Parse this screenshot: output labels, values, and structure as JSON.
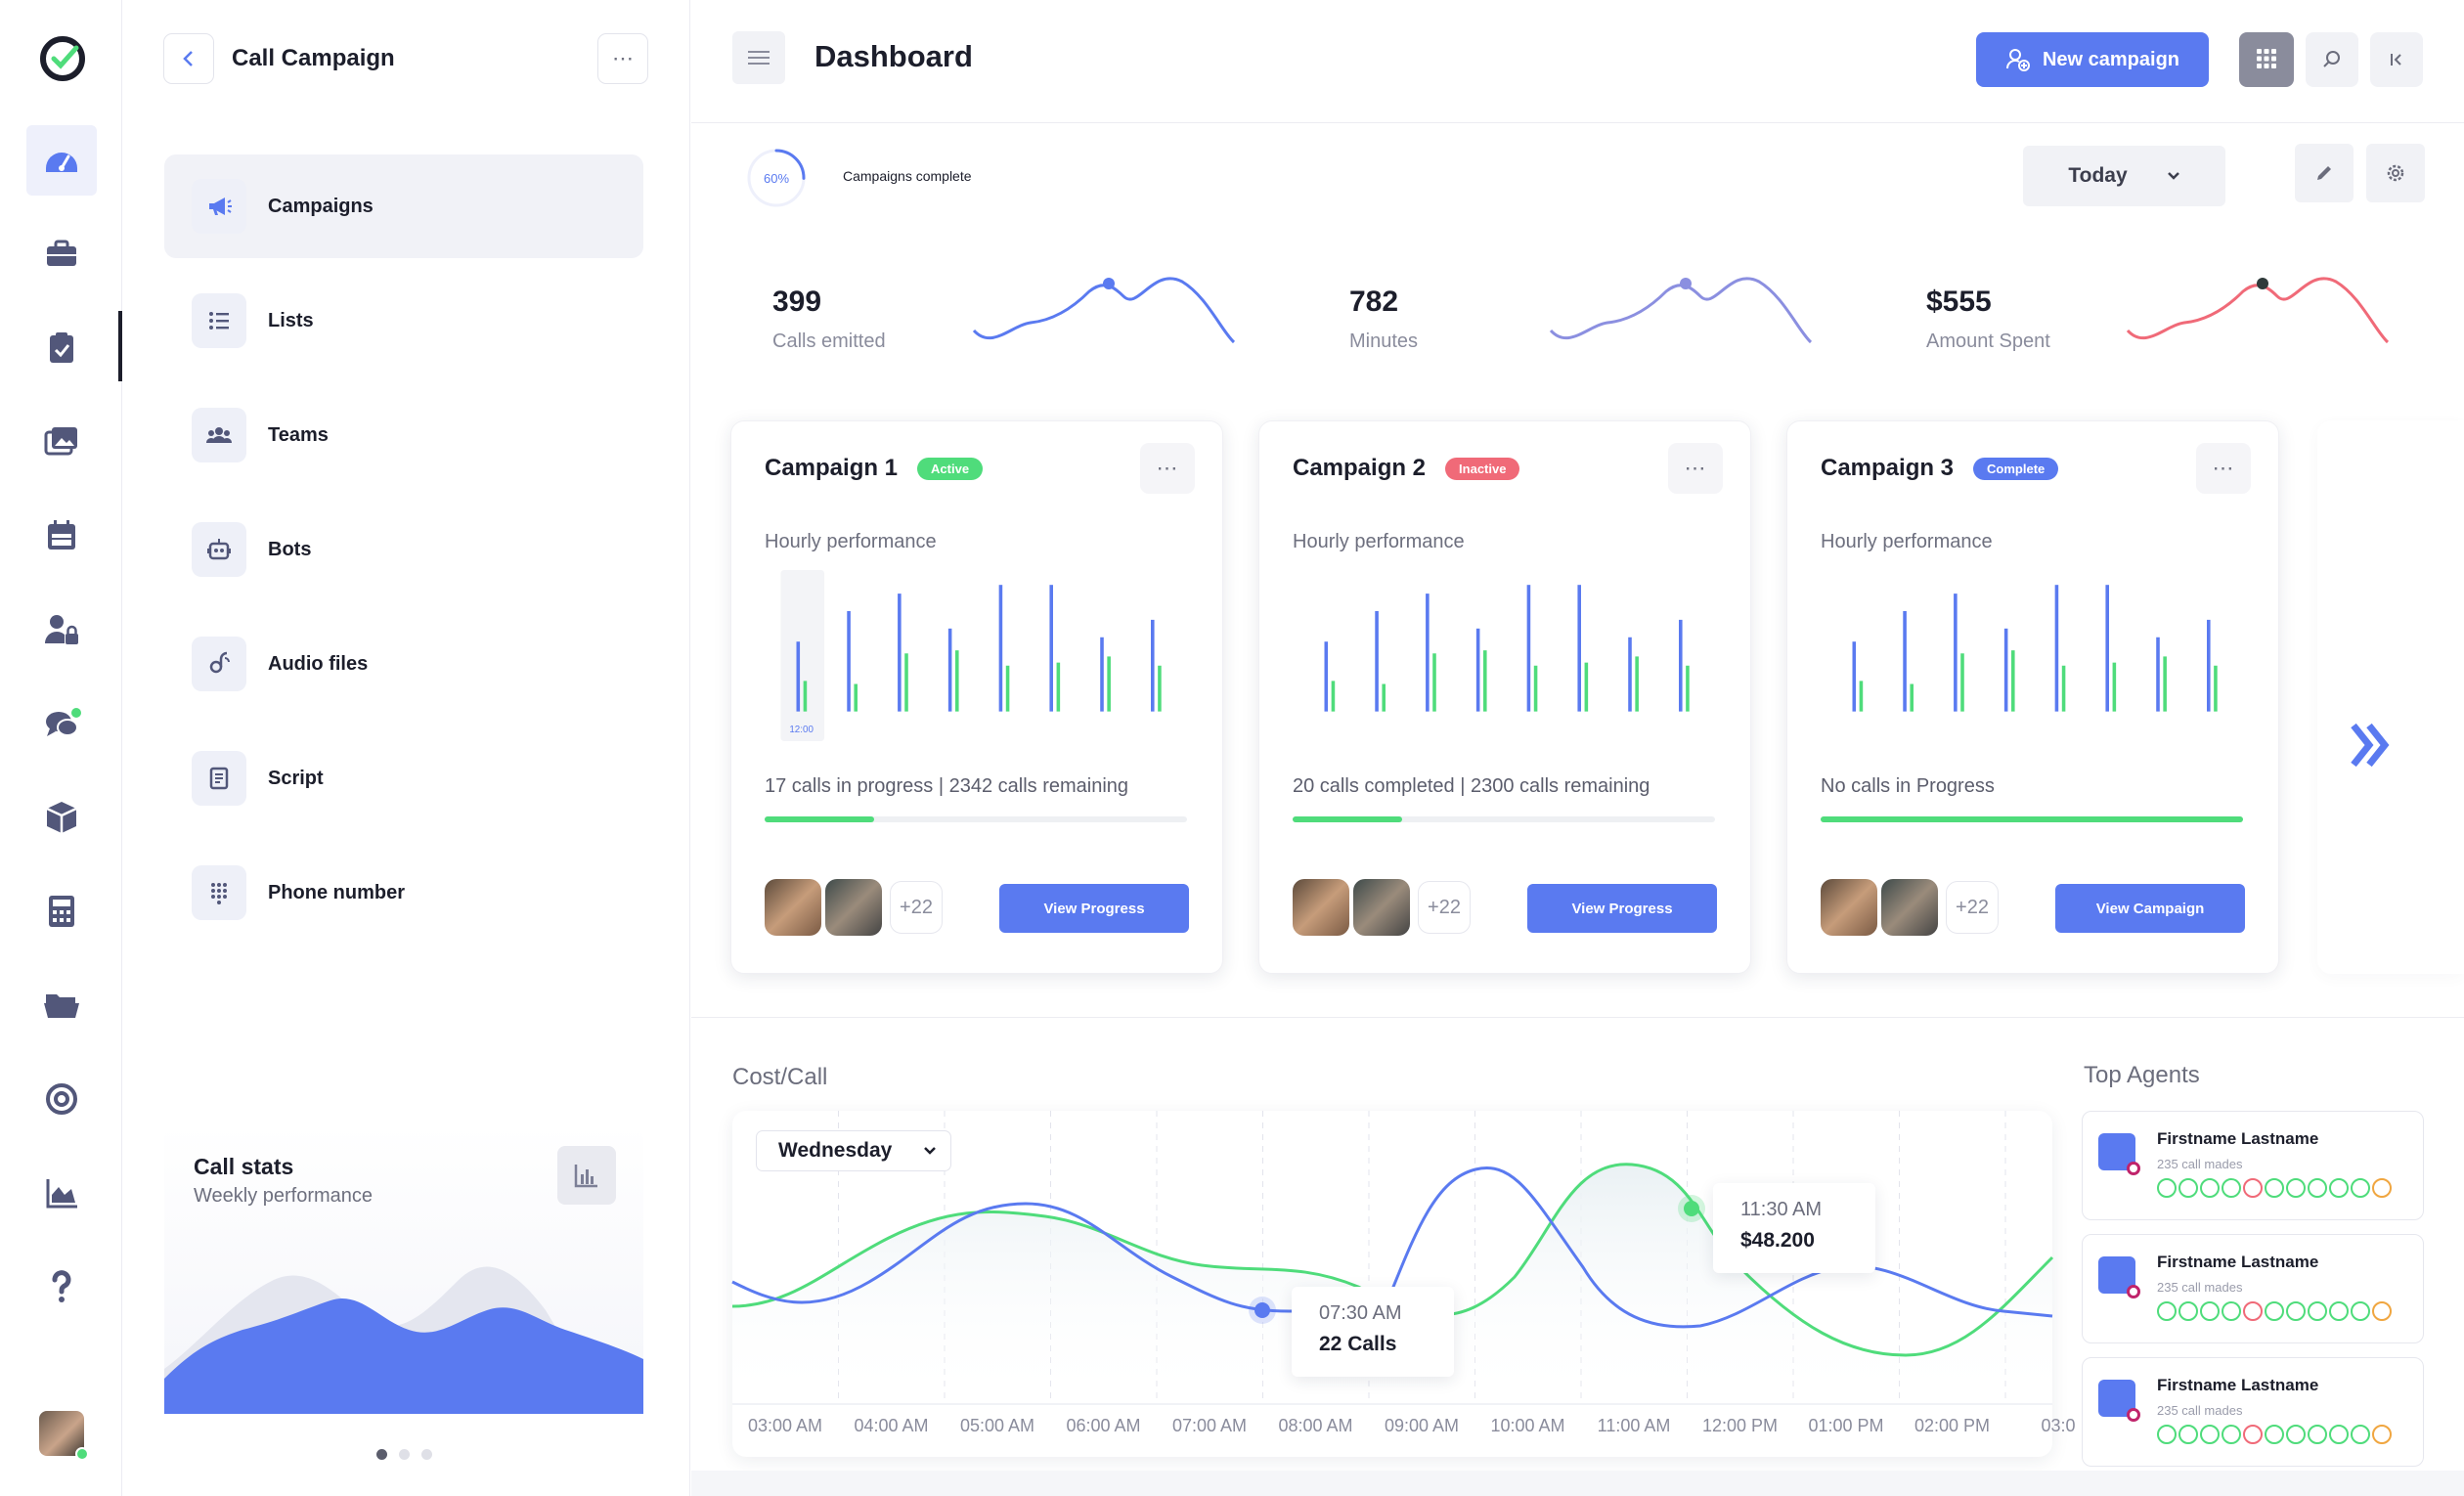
{
  "sidebar": {
    "title": "Call Campaign",
    "menu": [
      {
        "label": "Campaigns",
        "icon": "megaphone-icon"
      },
      {
        "label": "Lists",
        "icon": "list-icon"
      },
      {
        "label": "Teams",
        "icon": "team-icon"
      },
      {
        "label": "Bots",
        "icon": "bot-icon"
      },
      {
        "label": "Audio files",
        "icon": "audio-icon"
      },
      {
        "label": "Script",
        "icon": "script-icon"
      },
      {
        "label": "Phone number",
        "icon": "keypad-icon"
      }
    ],
    "stats_card": {
      "title": "Call stats",
      "subtitle": "Weekly performance"
    }
  },
  "header": {
    "title": "Dashboard",
    "new_campaign_label": "New campaign"
  },
  "summary": {
    "progress_label": "60%",
    "progress_value": 0.6,
    "progress_caption": "Campaigns complete",
    "period": "Today",
    "metrics": [
      {
        "value": "399",
        "label": "Calls emitted",
        "color": "#5a7af0"
      },
      {
        "value": "782",
        "label": "Minutes",
        "color": "#8b8fe0"
      },
      {
        "value": "$555",
        "label": "Amount Spent",
        "color": "#f06a78"
      }
    ]
  },
  "hourly_label": "Hourly performance",
  "campaigns": [
    {
      "name": "Campaign 1",
      "badge": "Active",
      "badge_color": "#4fdc7b",
      "status": "17 calls in progress | 2342 calls remaining",
      "progress": 0.26,
      "more": "+22",
      "button": "View Progress",
      "first_bar_label": "12:00"
    },
    {
      "name": "Campaign 2",
      "badge": "Inactive",
      "badge_color": "#f06a78",
      "status": "20 calls completed | 2300 calls remaining",
      "progress": 0.26,
      "more": "+22",
      "button": "View Progress"
    },
    {
      "name": "Campaign 3",
      "badge": "Complete",
      "badge_color": "#5a7af0",
      "status": "No calls in Progress",
      "progress": 1.0,
      "more": "+22",
      "button": "View Campaign"
    }
  ],
  "cost_call": {
    "title": "Cost/Call",
    "day": "Wednesday",
    "x_labels": [
      "03:00 AM",
      "04:00 AM",
      "05:00 AM",
      "06:00 AM",
      "07:00 AM",
      "08:00 AM",
      "09:00 AM",
      "10:00 AM",
      "11:00 AM",
      "12:00 PM",
      "01:00 PM",
      "02:00 PM",
      "03:0"
    ],
    "tooltip1": {
      "time": "07:30 AM",
      "value": "22 Calls"
    },
    "tooltip2": {
      "time": "11:30 AM",
      "value": "$48.200"
    }
  },
  "top_agents": {
    "title": "Top Agents",
    "agents": [
      {
        "name": "Firstname Lastname",
        "sub": "235 call mades"
      },
      {
        "name": "Firstname Lastname",
        "sub": "235 call mades"
      },
      {
        "name": "Firstname Lastname",
        "sub": "235 call mades"
      }
    ]
  }
}
